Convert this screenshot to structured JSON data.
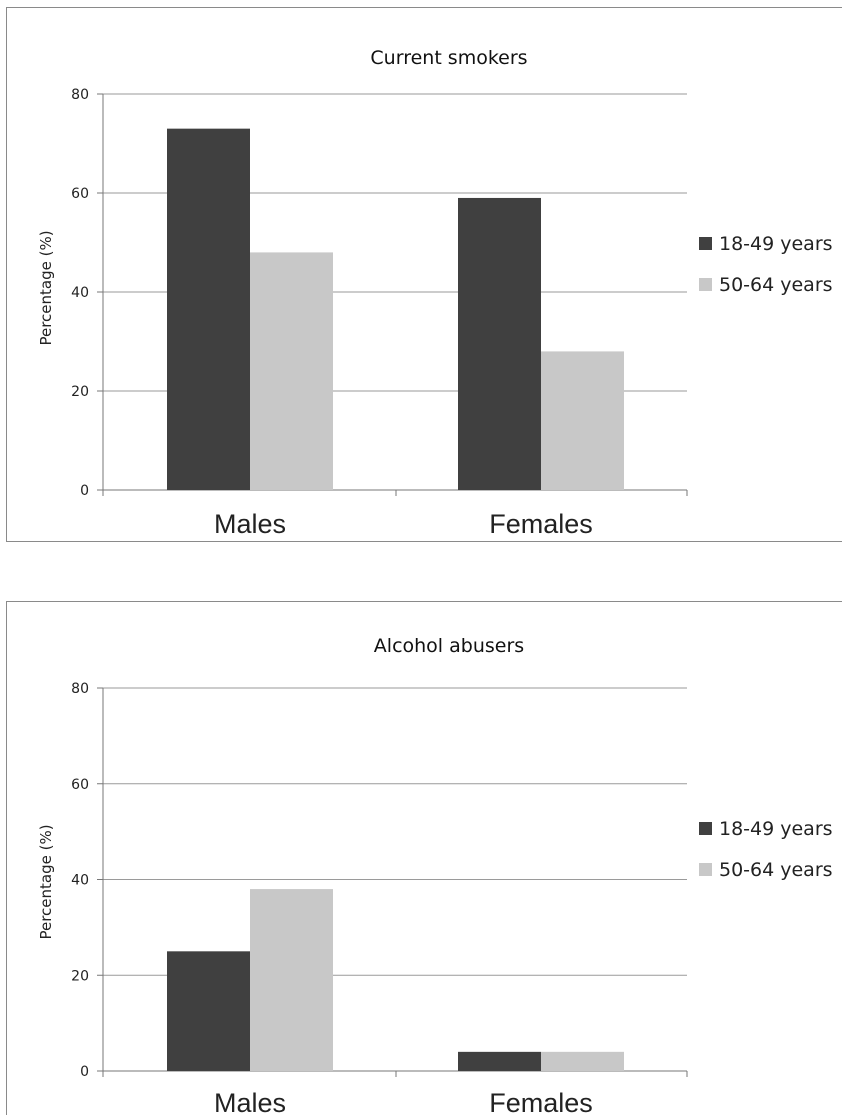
{
  "chart_data": [
    {
      "type": "bar",
      "title": "Current smokers",
      "xlabel": "",
      "ylabel": "Percentage (%)",
      "ylim": [
        0,
        80
      ],
      "yticks": [
        "0",
        "20",
        "40",
        "60",
        "80"
      ],
      "categories": [
        "Males",
        "Females"
      ],
      "series": [
        {
          "name": "18-49 years",
          "values": [
            73,
            59
          ],
          "color": "#404040"
        },
        {
          "name": "50-64 years",
          "values": [
            48,
            28
          ],
          "color": "#c8c8c8"
        }
      ],
      "grid": true,
      "legend": "right"
    },
    {
      "type": "bar",
      "title": "Alcohol abusers",
      "xlabel": "",
      "ylabel": "Percentage (%)",
      "ylim": [
        0,
        80
      ],
      "yticks": [
        "0",
        "20",
        "40",
        "60",
        "80"
      ],
      "categories": [
        "Males",
        "Females"
      ],
      "series": [
        {
          "name": "18-49 years",
          "values": [
            25,
            4
          ],
          "color": "#404040"
        },
        {
          "name": "50-64 years",
          "values": [
            38,
            4
          ],
          "color": "#c8c8c8"
        }
      ],
      "grid": true,
      "legend": "right"
    }
  ]
}
